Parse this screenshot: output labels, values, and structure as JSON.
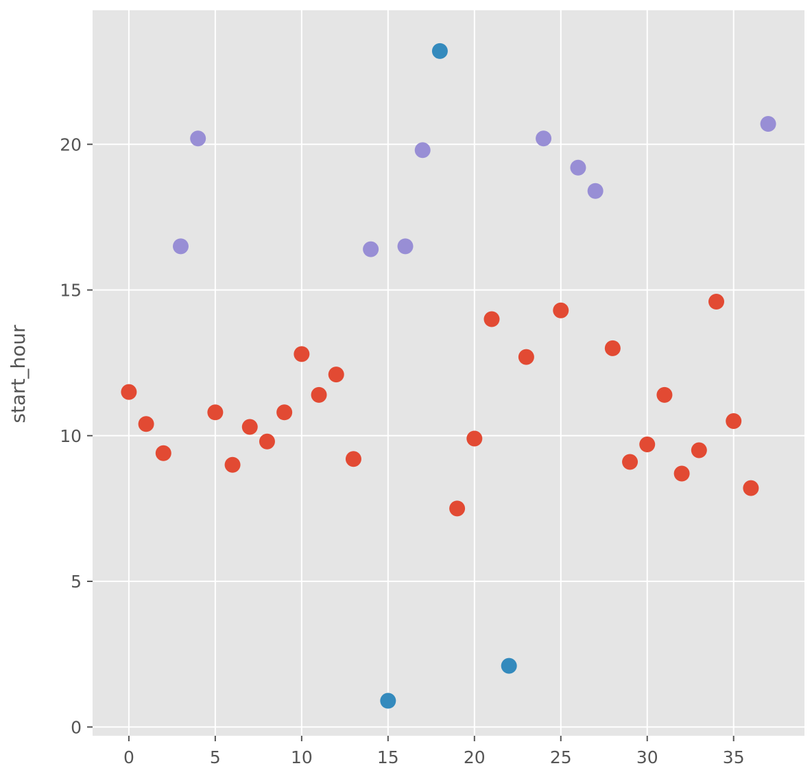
{
  "chart_data": {
    "type": "scatter",
    "title": "",
    "xlabel": "",
    "ylabel": "start_hour",
    "xlim": [
      -2.1,
      39.1
    ],
    "ylim": [
      -0.3,
      24.6
    ],
    "xticks": [
      0,
      5,
      10,
      15,
      20,
      25,
      30,
      35
    ],
    "yticks": [
      0,
      5,
      10,
      15,
      20
    ],
    "grid": true,
    "background": "#e5e5e5",
    "grid_color": "#ffffff",
    "series": [
      {
        "color": "#e24a33",
        "points": [
          [
            0,
            11.5
          ],
          [
            1,
            10.4
          ],
          [
            2,
            9.4
          ],
          [
            5,
            10.8
          ],
          [
            6,
            9.0
          ],
          [
            7,
            10.3
          ],
          [
            8,
            9.8
          ],
          [
            9,
            10.8
          ],
          [
            10,
            12.8
          ],
          [
            11,
            11.4
          ],
          [
            12,
            12.1
          ],
          [
            13,
            9.2
          ],
          [
            19,
            7.5
          ],
          [
            20,
            9.9
          ],
          [
            21,
            14.0
          ],
          [
            23,
            12.7
          ],
          [
            25,
            14.3
          ],
          [
            28,
            13.0
          ],
          [
            29,
            9.1
          ],
          [
            30,
            9.7
          ],
          [
            31,
            11.4
          ],
          [
            32,
            8.7
          ],
          [
            33,
            9.5
          ],
          [
            34,
            14.6
          ],
          [
            35,
            10.5
          ],
          [
            36,
            8.2
          ]
        ]
      },
      {
        "color": "#988ed5",
        "points": [
          [
            3,
            16.5
          ],
          [
            4,
            20.2
          ],
          [
            14,
            16.4
          ],
          [
            16,
            16.5
          ],
          [
            17,
            19.8
          ],
          [
            24,
            20.2
          ],
          [
            26,
            19.2
          ],
          [
            27,
            18.4
          ],
          [
            37,
            20.7
          ]
        ]
      },
      {
        "color": "#348abd",
        "points": [
          [
            15,
            0.9
          ],
          [
            18,
            23.2
          ],
          [
            22,
            2.1
          ]
        ]
      }
    ]
  }
}
